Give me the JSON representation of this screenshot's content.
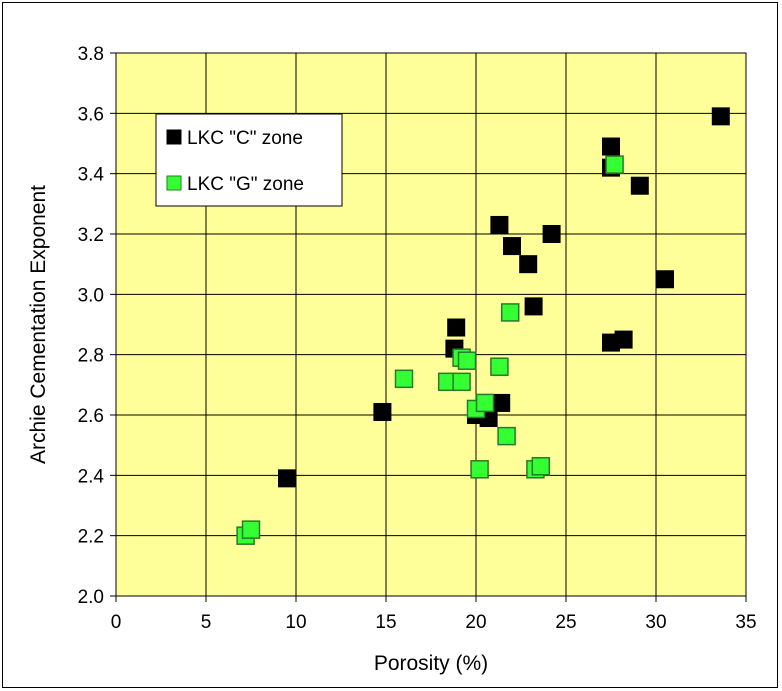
{
  "chart_data": {
    "type": "scatter",
    "title": "",
    "xlabel": "Porosity (%)",
    "ylabel": "Archie Cementation Exponent",
    "xlim": [
      0,
      35
    ],
    "ylim": [
      2.0,
      3.8
    ],
    "xticks": [
      "0",
      "5",
      "10",
      "15",
      "20",
      "25",
      "30",
      "35"
    ],
    "yticks": [
      "2.0",
      "2.2",
      "2.4",
      "2.6",
      "2.8",
      "3.0",
      "3.2",
      "3.4",
      "3.6",
      "3.8"
    ],
    "grid": true,
    "background": "#ffff99",
    "legend_position": "top-left",
    "series": [
      {
        "name": "LKC \"C\" zone",
        "color": "#000000",
        "points": [
          {
            "x": 9.5,
            "y": 2.39
          },
          {
            "x": 14.8,
            "y": 2.61
          },
          {
            "x": 18.8,
            "y": 2.82
          },
          {
            "x": 18.9,
            "y": 2.89
          },
          {
            "x": 20.0,
            "y": 2.6
          },
          {
            "x": 20.7,
            "y": 2.59
          },
          {
            "x": 21.4,
            "y": 2.64
          },
          {
            "x": 21.3,
            "y": 3.23
          },
          {
            "x": 22.0,
            "y": 3.16
          },
          {
            "x": 22.9,
            "y": 3.1
          },
          {
            "x": 23.2,
            "y": 2.96
          },
          {
            "x": 24.2,
            "y": 3.2
          },
          {
            "x": 27.5,
            "y": 3.49
          },
          {
            "x": 27.5,
            "y": 3.42
          },
          {
            "x": 27.5,
            "y": 2.84
          },
          {
            "x": 28.2,
            "y": 2.85
          },
          {
            "x": 29.1,
            "y": 3.36
          },
          {
            "x": 30.5,
            "y": 3.05
          },
          {
            "x": 33.6,
            "y": 3.59
          }
        ]
      },
      {
        "name": "LKC \"G\" zone",
        "color": "#33ff33",
        "points": [
          {
            "x": 7.2,
            "y": 2.2
          },
          {
            "x": 7.5,
            "y": 2.22
          },
          {
            "x": 16.0,
            "y": 2.72
          },
          {
            "x": 18.4,
            "y": 2.71
          },
          {
            "x": 19.2,
            "y": 2.71
          },
          {
            "x": 19.2,
            "y": 2.79
          },
          {
            "x": 19.5,
            "y": 2.78
          },
          {
            "x": 20.0,
            "y": 2.62
          },
          {
            "x": 20.5,
            "y": 2.64
          },
          {
            "x": 20.2,
            "y": 2.42
          },
          {
            "x": 21.3,
            "y": 2.76
          },
          {
            "x": 21.7,
            "y": 2.53
          },
          {
            "x": 21.9,
            "y": 2.94
          },
          {
            "x": 23.3,
            "y": 2.42
          },
          {
            "x": 23.6,
            "y": 2.43
          },
          {
            "x": 27.7,
            "y": 3.43
          }
        ]
      }
    ]
  }
}
